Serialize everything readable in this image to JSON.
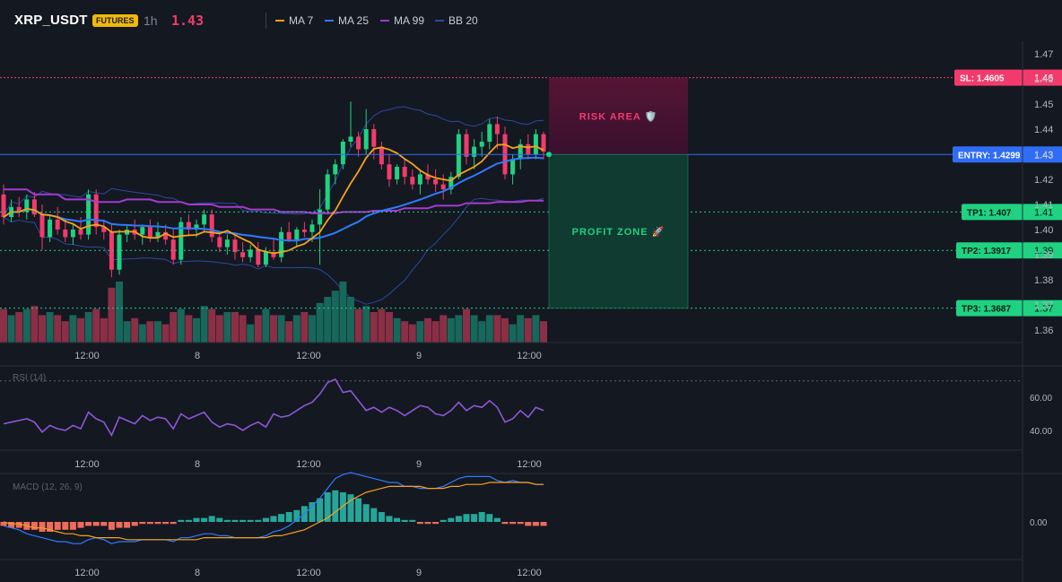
{
  "header": {
    "symbol": "XRP_USDT",
    "badge": "FUTURES",
    "timeframe": "1h",
    "price": "1.43",
    "indicators": [
      {
        "label": "MA 7",
        "color": "#f7a21b"
      },
      {
        "label": "MA 25",
        "color": "#2f7bff"
      },
      {
        "label": "MA 99",
        "color": "#a33bd0"
      },
      {
        "label": "BB 20",
        "color": "#2b4a9e"
      }
    ]
  },
  "price_axis": [
    "1.47",
    "1.46",
    "1.45",
    "1.44",
    "1.43",
    "1.42",
    "1.41",
    "1.40",
    "1.39",
    "1.38",
    "1.37",
    "1.36"
  ],
  "time_axis": [
    "12:00",
    "8",
    "12:00",
    "9",
    "12:00"
  ],
  "levels": {
    "sl": {
      "label": "SL: 1.4605",
      "tick": "1.46",
      "value": 1.4605
    },
    "entry": {
      "label": "ENTRY: 1.4299",
      "tick": "1.43",
      "value": 1.4299
    },
    "tp1": {
      "label": "TP1: 1.407",
      "tick": "1.41",
      "value": 1.407
    },
    "tp2": {
      "label": "TP2: 1.3917",
      "tick": "1.39",
      "value": 1.3917
    },
    "tp3": {
      "label": "TP3: 1.3687",
      "tick": "1.37",
      "value": 1.3687
    }
  },
  "zones": {
    "risk": "RISK AREA 🛡️",
    "profit": "PROFIT ZONE 🚀"
  },
  "rsi": {
    "title": "RSI (14)",
    "ticks": [
      "60.00",
      "40.00"
    ]
  },
  "macd": {
    "title": "MACD (12, 26, 9)",
    "ticks": [
      "0.00"
    ]
  },
  "chart_data": {
    "type": "candlestick",
    "y_range": [
      1.355,
      1.475
    ],
    "candles": [
      [
        1.414,
        1.418,
        1.402,
        1.405
      ],
      [
        1.405,
        1.412,
        1.403,
        1.409
      ],
      [
        1.409,
        1.413,
        1.405,
        1.407
      ],
      [
        1.407,
        1.414,
        1.404,
        1.412
      ],
      [
        1.412,
        1.415,
        1.405,
        1.406
      ],
      [
        1.406,
        1.41,
        1.392,
        1.397
      ],
      [
        1.397,
        1.406,
        1.395,
        1.404
      ],
      [
        1.404,
        1.409,
        1.398,
        1.4
      ],
      [
        1.4,
        1.404,
        1.395,
        1.397
      ],
      [
        1.397,
        1.402,
        1.394,
        1.4
      ],
      [
        1.4,
        1.405,
        1.396,
        1.398
      ],
      [
        1.398,
        1.416,
        1.396,
        1.414
      ],
      [
        1.414,
        1.416,
        1.398,
        1.401
      ],
      [
        1.401,
        1.404,
        1.396,
        1.399
      ],
      [
        1.399,
        1.402,
        1.381,
        1.384
      ],
      [
        1.384,
        1.4,
        1.382,
        1.398
      ],
      [
        1.398,
        1.402,
        1.395,
        1.4
      ],
      [
        1.4,
        1.404,
        1.396,
        1.398
      ],
      [
        1.398,
        1.402,
        1.394,
        1.401
      ],
      [
        1.401,
        1.404,
        1.395,
        1.397
      ],
      [
        1.397,
        1.403,
        1.395,
        1.399
      ],
      [
        1.399,
        1.402,
        1.394,
        1.396
      ],
      [
        1.396,
        1.4,
        1.386,
        1.388
      ],
      [
        1.388,
        1.405,
        1.386,
        1.403
      ],
      [
        1.403,
        1.406,
        1.398,
        1.4
      ],
      [
        1.4,
        1.404,
        1.397,
        1.402
      ],
      [
        1.402,
        1.408,
        1.399,
        1.406
      ],
      [
        1.406,
        1.408,
        1.395,
        1.397
      ],
      [
        1.397,
        1.399,
        1.391,
        1.393
      ],
      [
        1.393,
        1.398,
        1.39,
        1.396
      ],
      [
        1.396,
        1.398,
        1.388,
        1.391
      ],
      [
        1.391,
        1.395,
        1.387,
        1.389
      ],
      [
        1.389,
        1.394,
        1.387,
        1.392
      ],
      [
        1.392,
        1.395,
        1.385,
        1.386
      ],
      [
        1.386,
        1.393,
        1.385,
        1.391
      ],
      [
        1.391,
        1.396,
        1.388,
        1.389
      ],
      [
        1.389,
        1.401,
        1.387,
        1.399
      ],
      [
        1.399,
        1.403,
        1.395,
        1.396
      ],
      [
        1.396,
        1.401,
        1.393,
        1.4
      ],
      [
        1.4,
        1.403,
        1.397,
        1.399
      ],
      [
        1.399,
        1.404,
        1.395,
        1.402
      ],
      [
        1.402,
        1.416,
        1.386,
        1.408
      ],
      [
        1.408,
        1.424,
        1.406,
        1.422
      ],
      [
        1.422,
        1.428,
        1.418,
        1.426
      ],
      [
        1.426,
        1.436,
        1.424,
        1.435
      ],
      [
        1.435,
        1.451,
        1.433,
        1.437
      ],
      [
        1.437,
        1.439,
        1.429,
        1.432
      ],
      [
        1.432,
        1.448,
        1.43,
        1.44
      ],
      [
        1.44,
        1.442,
        1.428,
        1.433
      ],
      [
        1.433,
        1.435,
        1.424,
        1.426
      ],
      [
        1.426,
        1.43,
        1.417,
        1.42
      ],
      [
        1.42,
        1.426,
        1.418,
        1.425
      ],
      [
        1.425,
        1.428,
        1.418,
        1.421
      ],
      [
        1.421,
        1.424,
        1.416,
        1.418
      ],
      [
        1.418,
        1.424,
        1.414,
        1.422
      ],
      [
        1.422,
        1.426,
        1.418,
        1.42
      ],
      [
        1.42,
        1.424,
        1.415,
        1.418
      ],
      [
        1.418,
        1.422,
        1.412,
        1.416
      ],
      [
        1.416,
        1.423,
        1.414,
        1.421
      ],
      [
        1.421,
        1.44,
        1.42,
        1.438
      ],
      [
        1.438,
        1.44,
        1.426,
        1.429
      ],
      [
        1.429,
        1.436,
        1.424,
        1.433
      ],
      [
        1.433,
        1.439,
        1.429,
        1.435
      ],
      [
        1.435,
        1.444,
        1.432,
        1.442
      ],
      [
        1.442,
        1.445,
        1.432,
        1.438
      ],
      [
        1.438,
        1.441,
        1.42,
        1.422
      ],
      [
        1.422,
        1.43,
        1.418,
        1.428
      ],
      [
        1.428,
        1.436,
        1.424,
        1.434
      ],
      [
        1.434,
        1.438,
        1.428,
        1.43
      ],
      [
        1.43,
        1.44,
        1.428,
        1.438
      ],
      [
        1.438,
        1.439,
        1.428,
        1.431
      ]
    ],
    "volume": [
      0.55,
      0.45,
      0.5,
      0.55,
      0.6,
      0.45,
      0.5,
      0.45,
      0.35,
      0.45,
      0.4,
      0.5,
      0.55,
      0.4,
      0.9,
      1.0,
      0.35,
      0.4,
      0.3,
      0.35,
      0.35,
      0.3,
      0.5,
      0.55,
      0.45,
      0.4,
      0.6,
      0.55,
      0.45,
      0.5,
      0.5,
      0.45,
      0.3,
      0.45,
      0.55,
      0.45,
      0.45,
      0.35,
      0.45,
      0.5,
      0.45,
      0.65,
      0.75,
      0.85,
      1.0,
      0.75,
      0.55,
      0.6,
      0.5,
      0.55,
      0.5,
      0.4,
      0.35,
      0.3,
      0.35,
      0.4,
      0.35,
      0.45,
      0.4,
      0.45,
      0.55,
      0.45,
      0.35,
      0.45,
      0.45,
      0.4,
      0.3,
      0.45,
      0.4,
      0.45,
      0.35
    ],
    "rsi": [
      44,
      45,
      46,
      47,
      45,
      39,
      43,
      41,
      40,
      43,
      41,
      51,
      47,
      45,
      37,
      48,
      46,
      44,
      49,
      46,
      48,
      47,
      41,
      50,
      47,
      49,
      51,
      45,
      42,
      44,
      43,
      40,
      43,
      45,
      42,
      50,
      48,
      49,
      52,
      55,
      57,
      62,
      69,
      71,
      63,
      64,
      58,
      52,
      54,
      51,
      54,
      52,
      49,
      52,
      55,
      54,
      50,
      49,
      52,
      57,
      52,
      55,
      54,
      58,
      54,
      45,
      47,
      52,
      48,
      54,
      52
    ],
    "macd_hist": [
      -0.002,
      -0.003,
      -0.003,
      -0.004,
      -0.004,
      -0.005,
      -0.005,
      -0.004,
      -0.004,
      -0.004,
      -0.003,
      -0.002,
      -0.002,
      -0.002,
      -0.004,
      -0.003,
      -0.003,
      -0.002,
      -0.001,
      -0.001,
      -0.001,
      -0.001,
      -0.001,
      0.001,
      0.001,
      0.002,
      0.002,
      0.003,
      0.002,
      0.001,
      0.001,
      0.001,
      0.001,
      0.001,
      0.002,
      0.003,
      0.004,
      0.005,
      0.006,
      0.008,
      0.01,
      0.012,
      0.015,
      0.016,
      0.015,
      0.014,
      0.012,
      0.009,
      0.007,
      0.005,
      0.003,
      0.002,
      0.001,
      0.001,
      -0.001,
      -0.001,
      -0.001,
      0.001,
      0.002,
      0.003,
      0.004,
      0.004,
      0.005,
      0.004,
      0.002,
      -0.001,
      -0.001,
      -0.001,
      -0.002,
      -0.002,
      -0.002
    ],
    "macd_line": [
      -0.002,
      -0.003,
      -0.004,
      -0.006,
      -0.007,
      -0.008,
      -0.009,
      -0.01,
      -0.01,
      -0.011,
      -0.011,
      -0.009,
      -0.008,
      -0.009,
      -0.011,
      -0.01,
      -0.01,
      -0.01,
      -0.009,
      -0.009,
      -0.009,
      -0.009,
      -0.01,
      -0.008,
      -0.008,
      -0.007,
      -0.006,
      -0.006,
      -0.007,
      -0.007,
      -0.008,
      -0.008,
      -0.008,
      -0.008,
      -0.007,
      -0.005,
      -0.004,
      -0.002,
      0.001,
      0.004,
      0.008,
      0.012,
      0.017,
      0.022,
      0.024,
      0.025,
      0.024,
      0.023,
      0.022,
      0.021,
      0.02,
      0.02,
      0.018,
      0.018,
      0.017,
      0.017,
      0.017,
      0.018,
      0.02,
      0.022,
      0.023,
      0.023,
      0.023,
      0.023,
      0.021,
      0.02,
      0.021,
      0.02,
      0.02,
      0.019,
      0.019
    ],
    "macd_signal": [
      0.0,
      -0.001,
      -0.001,
      -0.002,
      -0.003,
      -0.003,
      -0.004,
      -0.005,
      -0.006,
      -0.006,
      -0.007,
      -0.007,
      -0.008,
      -0.008,
      -0.008,
      -0.008,
      -0.009,
      -0.009,
      -0.009,
      -0.009,
      -0.009,
      -0.009,
      -0.009,
      -0.009,
      -0.009,
      -0.009,
      -0.008,
      -0.008,
      -0.008,
      -0.008,
      -0.008,
      -0.008,
      -0.008,
      -0.008,
      -0.008,
      -0.007,
      -0.007,
      -0.006,
      -0.005,
      -0.004,
      -0.002,
      0.0,
      0.002,
      0.005,
      0.008,
      0.011,
      0.013,
      0.015,
      0.016,
      0.017,
      0.018,
      0.018,
      0.018,
      0.018,
      0.018,
      0.017,
      0.017,
      0.017,
      0.018,
      0.018,
      0.019,
      0.019,
      0.019,
      0.02,
      0.02,
      0.02,
      0.02,
      0.02,
      0.02,
      0.019,
      0.019
    ]
  }
}
